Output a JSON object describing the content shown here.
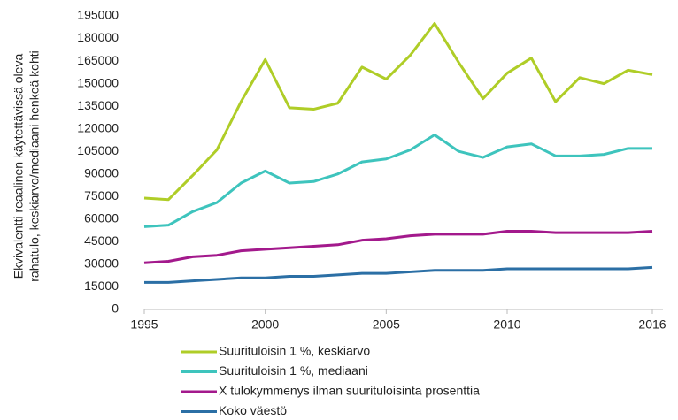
{
  "chart_data": {
    "type": "line",
    "ylabel": [
      "Ekvivalentti reaalinen käytettävissä oleva",
      "rahatulo, keskiarvo/mediaani henkeä kohti"
    ],
    "x": [
      1995,
      1996,
      1997,
      1998,
      1999,
      2000,
      2001,
      2002,
      2003,
      2004,
      2005,
      2006,
      2007,
      2008,
      2009,
      2010,
      2011,
      2012,
      2013,
      2014,
      2015,
      2016
    ],
    "series": [
      {
        "name": "Suurituloisin 1 %, keskiarvo",
        "color": "#afcd27",
        "values": [
          74000,
          73000,
          89000,
          106000,
          138000,
          166000,
          134000,
          133000,
          137000,
          161000,
          153000,
          169000,
          190000,
          164000,
          140000,
          157000,
          167000,
          138000,
          154000,
          150000,
          159000,
          156000
        ]
      },
      {
        "name": "Suurituloisin 1 %, mediaani",
        "color": "#3ec4bd",
        "values": [
          55000,
          56000,
          65000,
          71000,
          84000,
          92000,
          84000,
          85000,
          90000,
          98000,
          100000,
          106000,
          116000,
          105000,
          101000,
          108000,
          110000,
          102000,
          102000,
          103000,
          107000,
          107000
        ]
      },
      {
        "name": "X tulokymmenys ilman suurituloisinta prosenttia",
        "color": "#a3198c",
        "values": [
          31000,
          32000,
          35000,
          36000,
          39000,
          40000,
          41000,
          42000,
          43000,
          46000,
          47000,
          49000,
          50000,
          50000,
          50000,
          52000,
          52000,
          51000,
          51000,
          51000,
          51000,
          52000
        ]
      },
      {
        "name": "Koko väestö",
        "color": "#2b6fa5",
        "values": [
          18000,
          18000,
          19000,
          20000,
          21000,
          21000,
          22000,
          22000,
          23000,
          24000,
          24000,
          25000,
          26000,
          26000,
          26000,
          27000,
          27000,
          27000,
          27000,
          27000,
          27000,
          28000
        ]
      }
    ],
    "xlim": [
      1995,
      2016
    ],
    "xticks": [
      1995,
      2000,
      2005,
      2010,
      2016
    ],
    "ylim": [
      0,
      195000
    ],
    "yticks": [
      0,
      15000,
      30000,
      45000,
      60000,
      75000,
      90000,
      105000,
      120000,
      135000,
      150000,
      165000,
      180000,
      195000
    ]
  }
}
